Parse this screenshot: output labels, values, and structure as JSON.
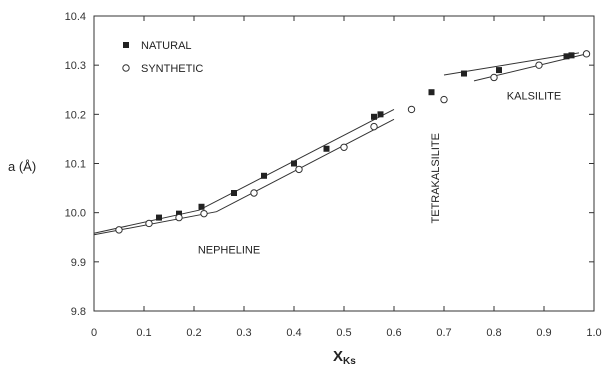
{
  "chart_data": {
    "type": "scatter",
    "title": "",
    "xlabel": "X",
    "xlabel_sub": "Ks",
    "ylabel": "a (Å)",
    "xlim": [
      0,
      1.0
    ],
    "ylim": [
      9.8,
      10.4
    ],
    "grid": false,
    "legend_position": "top-left",
    "x_ticks": [
      "0",
      "0.1",
      "0.2",
      "0.3",
      "0.4",
      "0.5",
      "0.6",
      "0.7",
      "0.8",
      "0.9",
      "1.0"
    ],
    "y_ticks": [
      "9.8",
      "9.9",
      "10.0",
      "10.1",
      "10.2",
      "10.3",
      "10.4"
    ],
    "series": [
      {
        "name": "NATURAL",
        "marker": "filled-square",
        "points": [
          {
            "x": 0.13,
            "y": 9.99
          },
          {
            "x": 0.17,
            "y": 9.998
          },
          {
            "x": 0.215,
            "y": 10.012
          },
          {
            "x": 0.28,
            "y": 10.04
          },
          {
            "x": 0.34,
            "y": 10.075
          },
          {
            "x": 0.4,
            "y": 10.1
          },
          {
            "x": 0.465,
            "y": 10.13
          },
          {
            "x": 0.56,
            "y": 10.195
          },
          {
            "x": 0.573,
            "y": 10.2
          },
          {
            "x": 0.675,
            "y": 10.245
          },
          {
            "x": 0.74,
            "y": 10.283
          },
          {
            "x": 0.81,
            "y": 10.29
          },
          {
            "x": 0.945,
            "y": 10.318
          },
          {
            "x": 0.955,
            "y": 10.32
          }
        ]
      },
      {
        "name": "SYNTHETIC",
        "marker": "open-circle",
        "points": [
          {
            "x": 0.05,
            "y": 9.965
          },
          {
            "x": 0.11,
            "y": 9.978
          },
          {
            "x": 0.17,
            "y": 9.99
          },
          {
            "x": 0.22,
            "y": 9.998
          },
          {
            "x": 0.32,
            "y": 10.04
          },
          {
            "x": 0.41,
            "y": 10.088
          },
          {
            "x": 0.5,
            "y": 10.133
          },
          {
            "x": 0.56,
            "y": 10.175
          },
          {
            "x": 0.635,
            "y": 10.21
          },
          {
            "x": 0.7,
            "y": 10.23
          },
          {
            "x": 0.8,
            "y": 10.275
          },
          {
            "x": 0.89,
            "y": 10.3
          },
          {
            "x": 0.985,
            "y": 10.323
          }
        ]
      }
    ],
    "fit_lines": [
      {
        "name": "natural-nepheline",
        "points": [
          [
            0.0,
            9.958
          ],
          [
            0.21,
            10.005
          ],
          [
            0.6,
            10.21
          ]
        ]
      },
      {
        "name": "synthetic-nepheline",
        "points": [
          [
            0.0,
            9.955
          ],
          [
            0.245,
            10.002
          ],
          [
            0.6,
            10.19
          ]
        ]
      },
      {
        "name": "natural-kalsilite",
        "points": [
          [
            0.7,
            10.28
          ],
          [
            0.97,
            10.325
          ]
        ]
      },
      {
        "name": "synthetic-kalsilite",
        "points": [
          [
            0.76,
            10.268
          ],
          [
            0.985,
            10.323
          ]
        ]
      }
    ],
    "annotations": [
      {
        "text": "NEPHELINE",
        "x": 0.27,
        "y": 9.917,
        "rotate": 0
      },
      {
        "text": "TETRAKALSILITE",
        "x": 0.69,
        "y": 10.07,
        "rotate": -90
      },
      {
        "text": "KALSILITE",
        "x": 0.88,
        "y": 10.23,
        "rotate": 0
      }
    ]
  }
}
